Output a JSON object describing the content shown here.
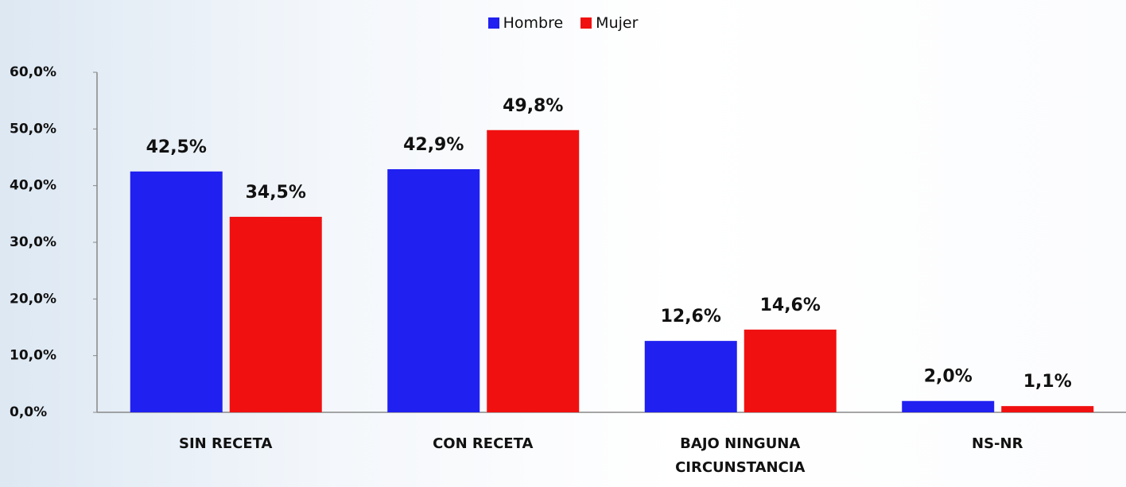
{
  "chart_data": {
    "type": "bar",
    "categories": [
      "SIN RECETA",
      "CON RECETA",
      "BAJO NINGUNA CIRCUNSTANCIA",
      "NS-NR"
    ],
    "series": [
      {
        "name": "Hombre",
        "color": "#2020f0",
        "values": [
          42.5,
          42.9,
          12.6,
          2.0
        ],
        "value_labels": [
          "42,5%",
          "42,9%",
          "12,6%",
          "2,0%"
        ]
      },
      {
        "name": "Mujer",
        "color": "#f01010",
        "values": [
          34.5,
          49.8,
          14.6,
          1.1
        ],
        "value_labels": [
          "34,5%",
          "49,8%",
          "14,6%",
          "1,1%"
        ]
      }
    ],
    "ylim": [
      0,
      60
    ],
    "yticks": [
      {
        "value": 0,
        "label": "0,0%"
      },
      {
        "value": 10,
        "label": "10,0%"
      },
      {
        "value": 20,
        "label": "20,0%"
      },
      {
        "value": 30,
        "label": "30,0%"
      },
      {
        "value": 40,
        "label": "40,0%"
      },
      {
        "value": 50,
        "label": "50,0%"
      },
      {
        "value": 60,
        "label": "60,0%"
      }
    ],
    "legend": "top",
    "grid": false
  }
}
